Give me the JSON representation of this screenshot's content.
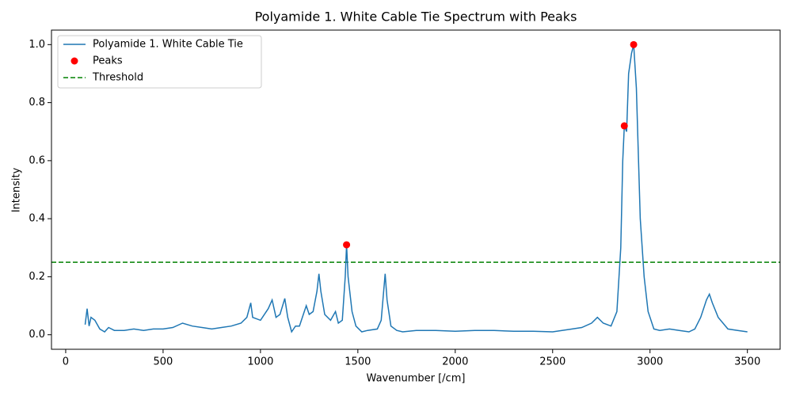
{
  "chart_data": {
    "type": "line",
    "title": "Polyamide 1. White Cable Tie Spectrum with Peaks",
    "x_label": "Wavenumber [/cm]",
    "y_label": "Intensity",
    "xlim": [
      -73,
      3668
    ],
    "ylim": [
      -0.05,
      1.05
    ],
    "xticks": [
      0,
      500,
      1000,
      1500,
      2000,
      2500,
      3000,
      3500
    ],
    "yticks": [
      {
        "value": 0,
        "label": "0.0"
      },
      0.2,
      0.4,
      0.6,
      0.8,
      {
        "value": 1,
        "label": "1.0"
      }
    ],
    "legend": "upper left",
    "series": [
      {
        "name": "Polyamide 1. White Cable Tie",
        "type": "line",
        "color": "#1f77b4",
        "x": [
          100,
          110,
          120,
          130,
          150,
          175,
          200,
          220,
          250,
          300,
          350,
          400,
          450,
          500,
          550,
          600,
          650,
          700,
          750,
          800,
          850,
          900,
          930,
          950,
          960,
          1000,
          1040,
          1060,
          1080,
          1100,
          1125,
          1140,
          1160,
          1180,
          1200,
          1220,
          1235,
          1250,
          1270,
          1290,
          1300,
          1310,
          1330,
          1360,
          1385,
          1400,
          1420,
          1435,
          1442,
          1450,
          1470,
          1490,
          1520,
          1550,
          1600,
          1620,
          1630,
          1640,
          1650,
          1670,
          1700,
          1730,
          1800,
          1900,
          2000,
          2100,
          2200,
          2300,
          2400,
          2500,
          2600,
          2650,
          2700,
          2730,
          2760,
          2800,
          2830,
          2850,
          2860,
          2868,
          2880,
          2890,
          2905,
          2916,
          2930,
          2950,
          2970,
          2990,
          3020,
          3050,
          3100,
          3150,
          3200,
          3230,
          3260,
          3290,
          3305,
          3320,
          3350,
          3400,
          3450,
          3500
        ],
        "values": [
          0.035,
          0.09,
          0.03,
          0.06,
          0.05,
          0.02,
          0.01,
          0.025,
          0.015,
          0.015,
          0.02,
          0.015,
          0.02,
          0.02,
          0.025,
          0.04,
          0.03,
          0.025,
          0.02,
          0.025,
          0.03,
          0.04,
          0.06,
          0.11,
          0.06,
          0.05,
          0.09,
          0.12,
          0.06,
          0.07,
          0.125,
          0.06,
          0.01,
          0.03,
          0.03,
          0.07,
          0.1,
          0.07,
          0.08,
          0.15,
          0.21,
          0.15,
          0.07,
          0.05,
          0.08,
          0.04,
          0.05,
          0.2,
          0.31,
          0.2,
          0.08,
          0.03,
          0.01,
          0.015,
          0.02,
          0.05,
          0.13,
          0.21,
          0.12,
          0.03,
          0.015,
          0.01,
          0.015,
          0.015,
          0.012,
          0.015,
          0.015,
          0.012,
          0.012,
          0.01,
          0.02,
          0.025,
          0.04,
          0.06,
          0.04,
          0.03,
          0.08,
          0.3,
          0.6,
          0.72,
          0.7,
          0.9,
          0.97,
          1.0,
          0.85,
          0.4,
          0.2,
          0.08,
          0.02,
          0.015,
          0.02,
          0.015,
          0.01,
          0.02,
          0.06,
          0.12,
          0.14,
          0.11,
          0.06,
          0.02,
          0.015,
          0.01
        ]
      },
      {
        "name": "Peaks",
        "type": "scatter",
        "color": "red",
        "x": [
          1442,
          2868,
          2916
        ],
        "values": [
          0.31,
          0.72,
          1.0
        ]
      }
    ],
    "threshold": {
      "name": "Threshold",
      "value": 0.25,
      "color": "green",
      "style": "dashed"
    }
  }
}
